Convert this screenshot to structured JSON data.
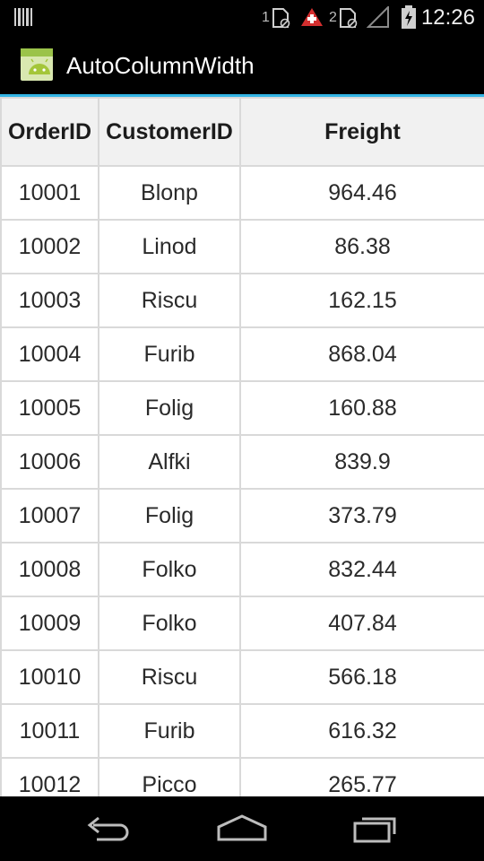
{
  "status_bar": {
    "sim1_label": "1",
    "sim2_label": "2",
    "time": "12:26",
    "icons": [
      "barcode-icon",
      "sim-data-icon",
      "alert-icon",
      "sim-data-icon",
      "signal-icon",
      "battery-charging-icon"
    ]
  },
  "action_bar": {
    "title": "AutoColumnWidth",
    "icon": "android-app-icon"
  },
  "grid": {
    "columns": [
      "OrderID",
      "CustomerID",
      "Freight"
    ],
    "rows": [
      [
        "10001",
        "Blonp",
        "964.46"
      ],
      [
        "10002",
        "Linod",
        "86.38"
      ],
      [
        "10003",
        "Riscu",
        "162.15"
      ],
      [
        "10004",
        "Furib",
        "868.04"
      ],
      [
        "10005",
        "Folig",
        "160.88"
      ],
      [
        "10006",
        "Alfki",
        "839.9"
      ],
      [
        "10007",
        "Folig",
        "373.79"
      ],
      [
        "10008",
        "Folko",
        "832.44"
      ],
      [
        "10009",
        "Folko",
        "407.84"
      ],
      [
        "10010",
        "Riscu",
        "566.18"
      ],
      [
        "10011",
        "Furib",
        "616.32"
      ],
      [
        "10012",
        "Picco",
        "265.77"
      ]
    ]
  },
  "nav_bar": {
    "icons": [
      "back-icon",
      "home-icon",
      "recents-icon"
    ]
  },
  "colors": {
    "accent": "#33b5e5",
    "grid_border": "#d9d9d9",
    "header_bg": "#f1f1f1",
    "alert_red": "#d32f2f"
  }
}
